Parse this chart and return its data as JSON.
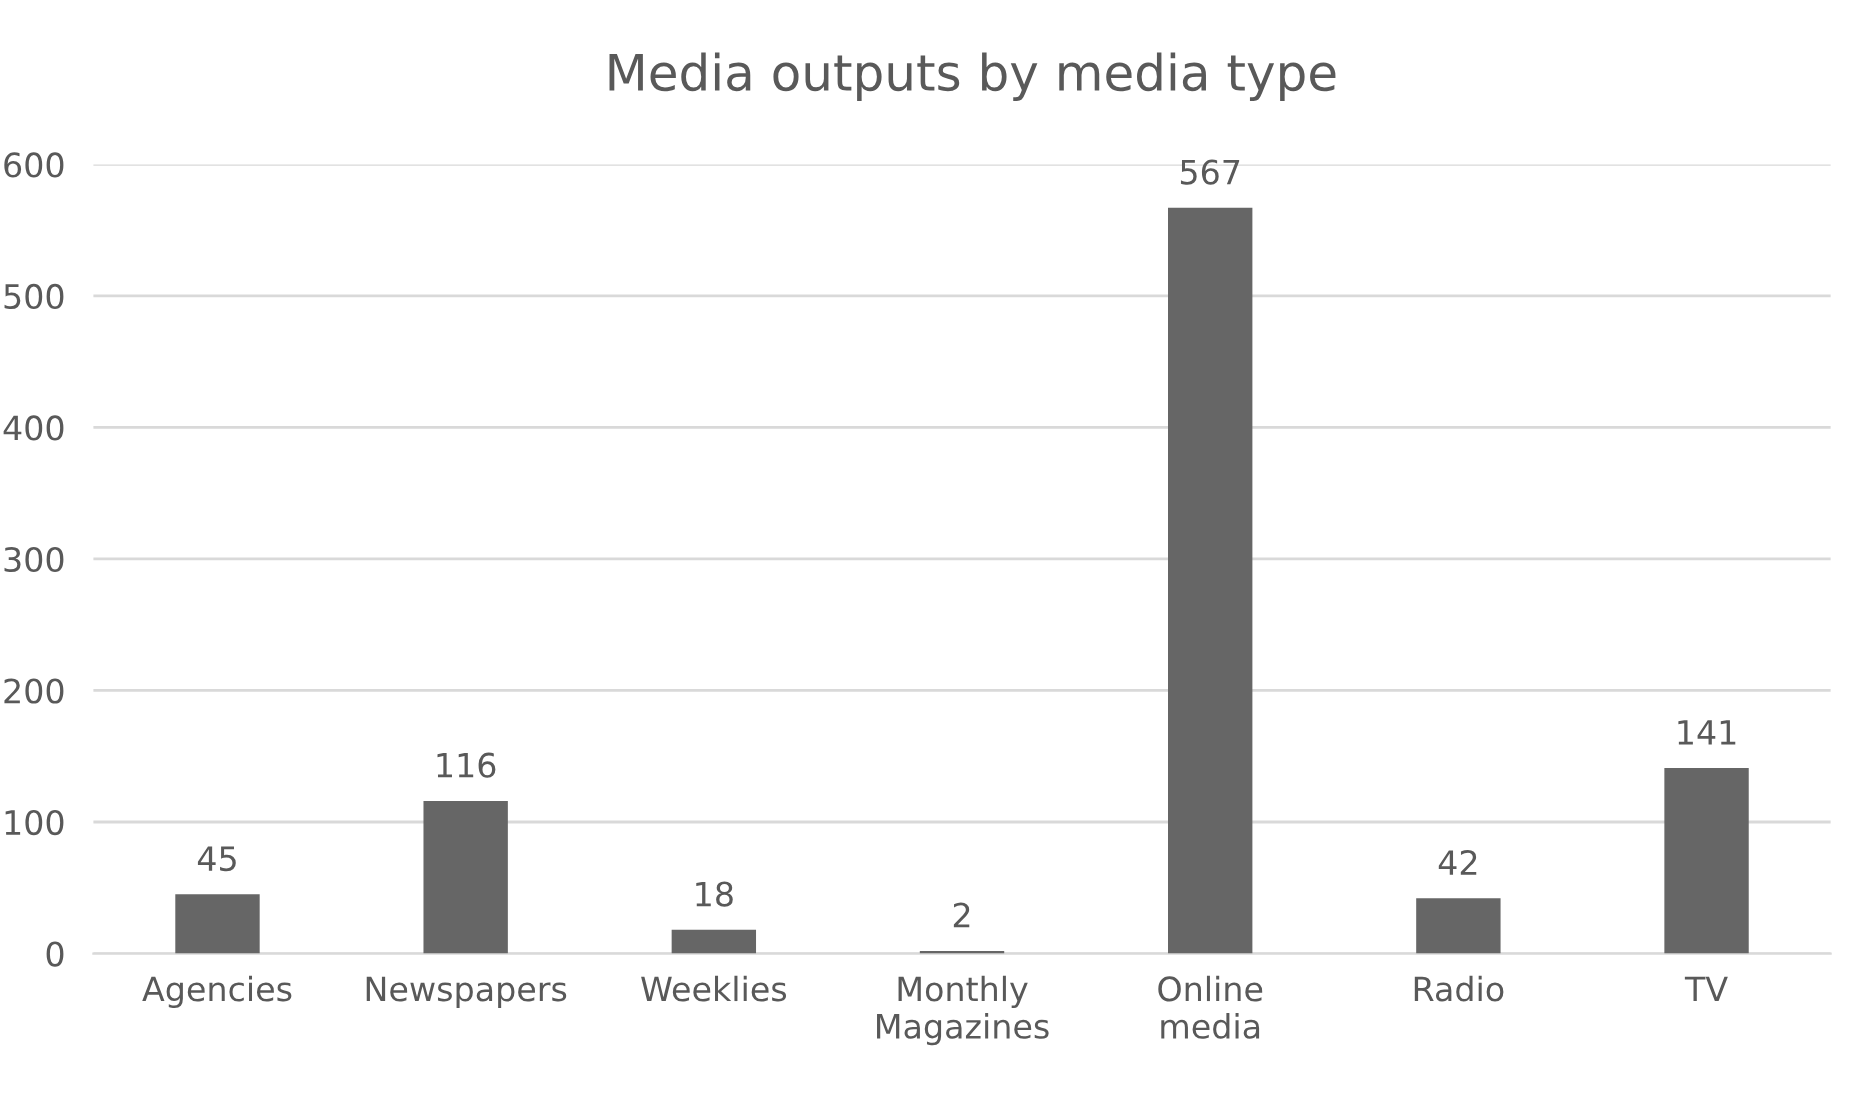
{
  "chart_data": {
    "type": "bar",
    "title": "Media outputs by media type",
    "categories": [
      "Agencies",
      "Newspapers",
      "Weeklies",
      "Monthly Magazines",
      "Online media",
      "Radio",
      "TV"
    ],
    "values": [
      45,
      116,
      18,
      2,
      567,
      42,
      141
    ],
    "color": "#666666",
    "ylim": [
      0,
      600
    ],
    "yticks": [
      0,
      100,
      200,
      300,
      400,
      500,
      600
    ],
    "grid": "y",
    "data_labels": true
  }
}
